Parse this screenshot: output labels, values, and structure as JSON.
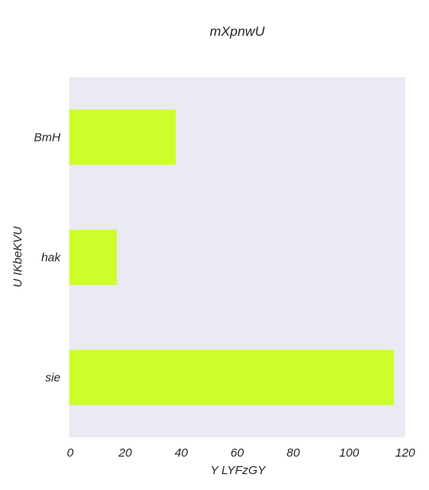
{
  "chart_data": {
    "type": "bar",
    "orientation": "horizontal",
    "title": "mXpnwU",
    "xlabel": "Y LYFzGY",
    "ylabel": "U IKbeKVU",
    "categories": [
      "BmH",
      "hak",
      "sie"
    ],
    "values": [
      38,
      17,
      116
    ],
    "xlim": [
      0,
      120
    ],
    "xticks": [
      0,
      20,
      40,
      60,
      80,
      100,
      120
    ],
    "grid": false,
    "legend": "none",
    "colors": {
      "bar": "#ccff2b",
      "plot_background": "#eaeaf2",
      "text": "#262626"
    }
  }
}
